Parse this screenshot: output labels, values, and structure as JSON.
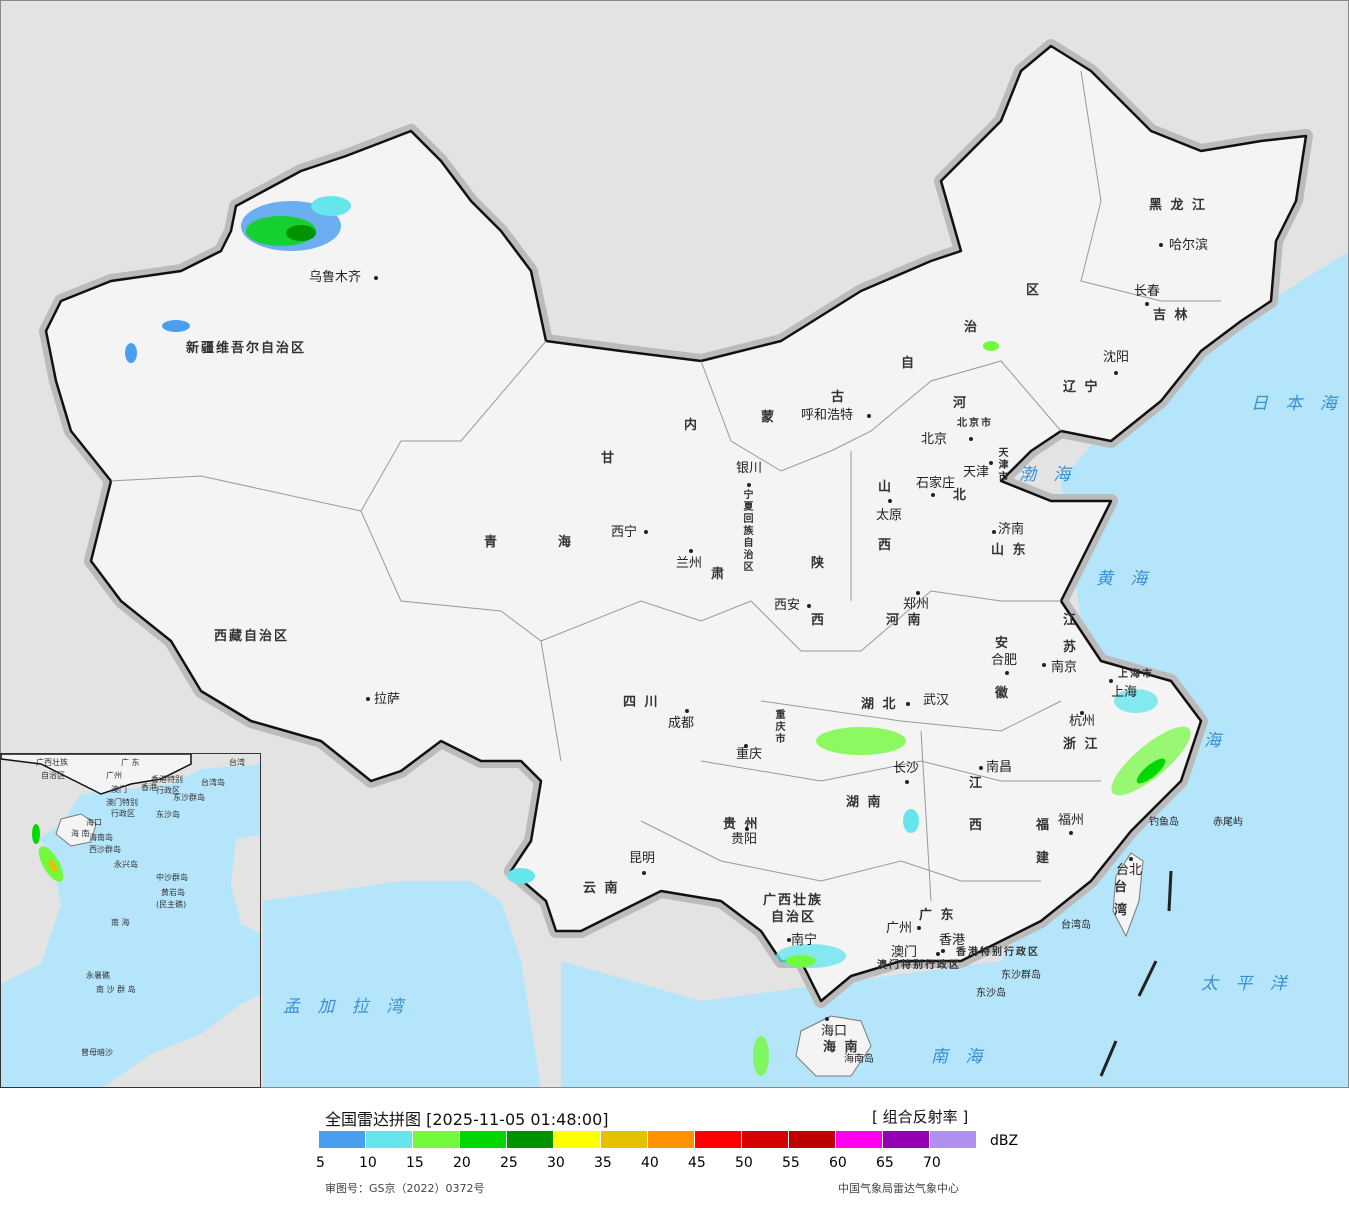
{
  "map": {
    "provinces": [
      "新疆维吾尔自治区",
      "西藏自治区",
      "青",
      "海",
      "甘",
      "肃",
      "内",
      "蒙",
      "古",
      "自",
      "治",
      "区",
      "黑 龙 江",
      "吉 林",
      "辽 宁",
      "河",
      "北",
      "山",
      "西",
      "陕",
      "西",
      "山 东",
      "河 南",
      "江",
      "苏",
      "安",
      "徽",
      "四 川",
      "湖 北",
      "重庆市",
      "湖 南",
      "江",
      "西",
      "浙 江",
      "福",
      "建",
      "贵 州",
      "云 南",
      "广西壮族",
      "自治区",
      "广 东",
      "台",
      "湾",
      "海 南",
      "上海市",
      "宁夏回族自治区",
      "北京市",
      "天津市",
      "香港特别行政区",
      "澳门特别行政区"
    ],
    "cities": [
      "乌鲁木齐",
      "拉萨",
      "西宁",
      "兰州",
      "银川",
      "呼和浩特",
      "北京",
      "天津",
      "石家庄",
      "太原",
      "济南",
      "郑州",
      "西安",
      "南京",
      "合肥",
      "上海",
      "杭州",
      "武汉",
      "成都",
      "重庆",
      "长沙",
      "南昌",
      "福州",
      "贵阳",
      "昆明",
      "南宁",
      "广州",
      "澳门",
      "香港",
      "海口",
      "台北",
      "哈尔滨",
      "长春",
      "沈阳"
    ],
    "islands": [
      "海南岛",
      "台湾岛",
      "东沙群岛",
      "东沙岛",
      "钓鱼岛",
      "赤尾屿"
    ],
    "seas": [
      "日 本 海",
      "渤 海",
      "黄 海",
      "海",
      "太 平 洋",
      "南 海",
      "孟 加 拉 湾"
    ],
    "inset_labels": [
      "广西壮族",
      "自治区",
      "广 东",
      "广州",
      "澳门",
      "香港",
      "香港特别",
      "行政区",
      "澳门特别",
      "行政区",
      "台湾",
      "台湾岛",
      "东沙群岛",
      "东沙岛",
      "海口",
      "海 南",
      "海南岛",
      "西沙群岛",
      "永兴岛",
      "中沙群岛",
      "黄岩岛",
      "(民主礁)",
      "南  海",
      "永暑礁",
      "南 沙 群 岛",
      "曾母暗沙"
    ]
  },
  "legend": {
    "title": "全国雷达拼图 [2025-11-05 01:48:00]",
    "product": "[ 组合反射率 ]",
    "unit": "dBZ",
    "colors": [
      "#4a9ef0",
      "#66e6ec",
      "#72fa3c",
      "#00d800",
      "#009300",
      "#ffff00",
      "#e7c000",
      "#ff9000",
      "#ff0000",
      "#d60000",
      "#c00000",
      "#ff00f0",
      "#9600b4",
      "#ad90f0"
    ],
    "ticks": [
      "5",
      "10",
      "15",
      "20",
      "25",
      "30",
      "35",
      "40",
      "45",
      "50",
      "55",
      "60",
      "65",
      "70"
    ],
    "approval": "审图号：GS京（2022）0372号",
    "source": "中国气象局雷达气象中心"
  }
}
